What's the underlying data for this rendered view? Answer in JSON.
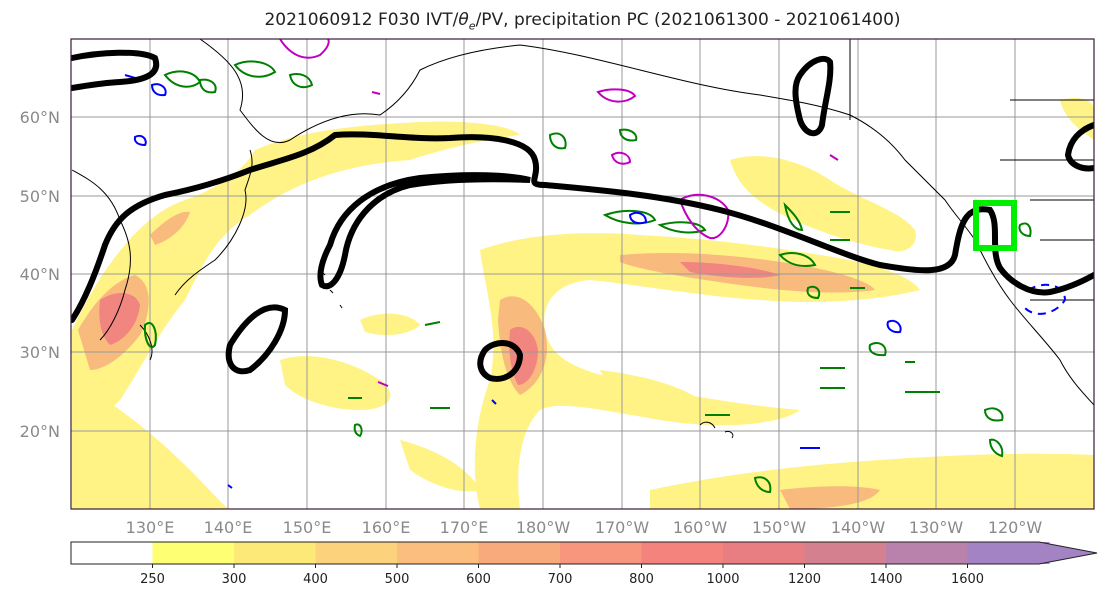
{
  "title": {
    "prefix": "2021060912 F030 IVT/",
    "theta": "θ",
    "sub": "e",
    "suffix": "/PV, precipitation PC (2021061300 - 2021061400)"
  },
  "axes": {
    "lat_labels": [
      "60°N",
      "50°N",
      "40°N",
      "30°N",
      "20°N"
    ],
    "lon_labels": [
      "130°E",
      "140°E",
      "150°E",
      "160°E",
      "170°E",
      "180°W",
      "170°W",
      "160°W",
      "150°W",
      "140°W",
      "130°W",
      "120°W"
    ],
    "grid": true
  },
  "colorbar": {
    "ticks": [
      "250",
      "300",
      "400",
      "500",
      "600",
      "700",
      "800",
      "1000",
      "1200",
      "1400",
      "1600"
    ],
    "colors": [
      "#ffffff",
      "#ffff73",
      "#fde978",
      "#fcd37c",
      "#fbbe7e",
      "#f9aa7d",
      "#f8967d",
      "#f4827d",
      "#e97e82",
      "#d4808e",
      "#b882ad",
      "#a483c4"
    ],
    "extend": "max"
  },
  "overlays": {
    "theta_e_contour": "#000000",
    "pv_positive": "#008000",
    "pv_negative": "#0000ff",
    "pv_magenta": "#c000c0",
    "target_box": "#00ee00",
    "coastline": "#000000"
  }
}
